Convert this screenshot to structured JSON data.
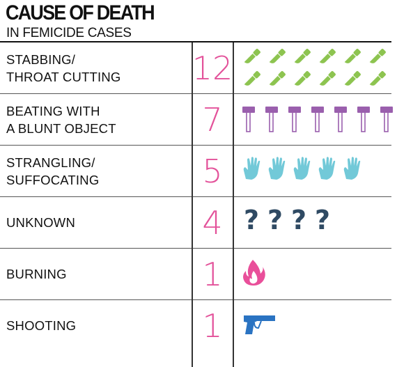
{
  "title": "CAUSE OF DEATH",
  "subtitle": "IN FEMICIDE CASES",
  "colors": {
    "count": "#e3529a",
    "knife": "#8dc450",
    "hammer": "#9a5fad",
    "hand": "#72c9d8",
    "question": "#2f4a63",
    "fire": "#e94f9a",
    "gun": "#2a73c2"
  },
  "chart_data": {
    "type": "table",
    "title": "CAUSE OF DEATH",
    "subtitle": "IN FEMICIDE CASES",
    "rows": [
      {
        "cause": "STABBING/\nTHROAT CUTTING",
        "count": 12,
        "icon": "knife-icon"
      },
      {
        "cause": "BEATING WITH\nA BLUNT OBJECT",
        "count": 7,
        "icon": "hammer-icon"
      },
      {
        "cause": "STRANGLING/\nSUFFOCATING",
        "count": 5,
        "icon": "hand-icon"
      },
      {
        "cause": "UNKNOWN",
        "count": 4,
        "icon": "question-mark-icon"
      },
      {
        "cause": "BURNING",
        "count": 1,
        "icon": "fire-icon"
      },
      {
        "cause": "SHOOTING",
        "count": 1,
        "icon": "gun-icon"
      }
    ]
  }
}
